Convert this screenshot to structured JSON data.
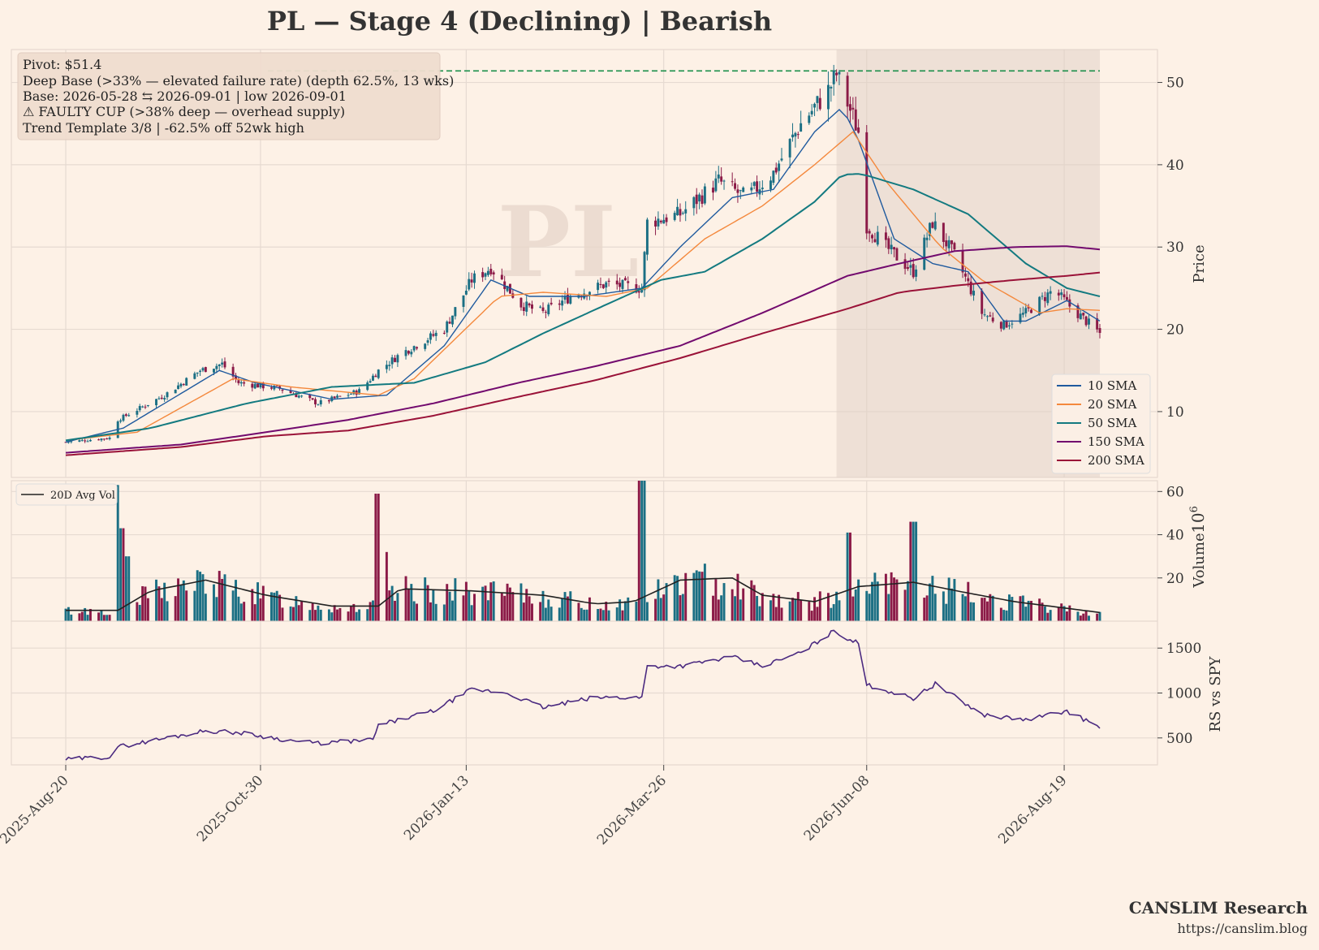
{
  "title": "PL  —  Stage 4 (Declining)  |  Bearish",
  "watermark": "PL",
  "annotation_lines": [
    "Pivot: $51.4",
    "Deep Base (>33% — elevated failure rate)  (depth 62.5%, 13 wks)",
    "Base: 2026-05-28 ⇆ 2026-09-01  |  low 2026-09-01",
    "⚠ FAULTY CUP (>38% deep — overhead supply)",
    "Trend Template 3/8  |  -62.5% off 52wk high"
  ],
  "brand": {
    "name": "CANSLIM Research",
    "url": "https://canslim.blog"
  },
  "colors": {
    "background": "#fdf1e6",
    "up_candle": "#1b6f84",
    "down_candle": "#8b1a47",
    "sma10": "#1f5a9e",
    "sma20": "#f4883c",
    "sma50": "#137a80",
    "sma150": "#720a6e",
    "sma200": "#9a1238",
    "avg_vol": "#222222",
    "rs_line": "#4b2a80",
    "pivot_line": "#1b8f4a",
    "base_shade": "#e0cfc5"
  },
  "chart_data": [
    {
      "type": "candlestick",
      "panel": "price",
      "ylabel": "Price",
      "ylim": [
        2,
        54
      ],
      "yticks": [
        10,
        20,
        30,
        40,
        50
      ],
      "x_range": [
        "2025-08-20",
        "2026-09-01"
      ],
      "xtick_labels": [
        "2025-Aug-20",
        "2025-Oct-30",
        "2026-Jan-13",
        "2026-Mar-26",
        "2026-Jun-08",
        "2026-Aug-19"
      ],
      "pivot": 51.4,
      "base_zone": [
        "2026-05-28",
        "2026-09-01"
      ],
      "price_path": [
        [
          "2025-08-20",
          6.3
        ],
        [
          "2025-09-05",
          6.8
        ],
        [
          "2025-09-08",
          9.0
        ],
        [
          "2025-09-25",
          12.0
        ],
        [
          "2025-10-08",
          15.0
        ],
        [
          "2025-10-16",
          15.8
        ],
        [
          "2025-10-22",
          13.5
        ],
        [
          "2025-11-06",
          12.8
        ],
        [
          "2025-11-20",
          11.0
        ],
        [
          "2025-12-05",
          12.5
        ],
        [
          "2025-12-12",
          15.0
        ],
        [
          "2025-12-20",
          17.0
        ],
        [
          "2026-01-05",
          20.0
        ],
        [
          "2026-01-15",
          26.0
        ],
        [
          "2026-01-22",
          27.5
        ],
        [
          "2026-02-02",
          23.0
        ],
        [
          "2026-02-10",
          22.0
        ],
        [
          "2026-02-20",
          24.0
        ],
        [
          "2026-03-05",
          25.5
        ],
        [
          "2026-03-18",
          25.0
        ],
        [
          "2026-03-20",
          33.0
        ],
        [
          "2026-04-01",
          34.0
        ],
        [
          "2026-04-15",
          38.0
        ],
        [
          "2026-04-25",
          36.0
        ],
        [
          "2026-05-05",
          39.0
        ],
        [
          "2026-05-15",
          45.0
        ],
        [
          "2026-05-25",
          49.0
        ],
        [
          "2026-05-28",
          51.0
        ],
        [
          "2026-06-05",
          44.0
        ],
        [
          "2026-06-07",
          33.0
        ],
        [
          "2026-06-15",
          30.0
        ],
        [
          "2026-06-25",
          27.0
        ],
        [
          "2026-07-02",
          33.0
        ],
        [
          "2026-07-10",
          29.0
        ],
        [
          "2026-07-20",
          22.0
        ],
        [
          "2026-07-28",
          20.5
        ],
        [
          "2026-08-05",
          22.0
        ],
        [
          "2026-08-15",
          24.8
        ],
        [
          "2026-08-22",
          22.5
        ],
        [
          "2026-09-01",
          19.5
        ]
      ],
      "series": [
        {
          "name": "10 SMA",
          "values": [
            [
              "2025-08-20",
              6.3
            ],
            [
              "2025-09-10",
              8.0
            ],
            [
              "2025-10-15",
              15.0
            ],
            [
              "2025-10-28",
              13.5
            ],
            [
              "2025-11-25",
              11.5
            ],
            [
              "2025-12-15",
              12.0
            ],
            [
              "2026-01-05",
              18.0
            ],
            [
              "2026-01-22",
              26.0
            ],
            [
              "2026-02-05",
              24.0
            ],
            [
              "2026-02-25",
              24.0
            ],
            [
              "2026-03-18",
              25.0
            ],
            [
              "2026-04-01",
              30.0
            ],
            [
              "2026-04-20",
              36.0
            ],
            [
              "2026-05-05",
              37.0
            ],
            [
              "2026-05-20",
              44.0
            ],
            [
              "2026-05-30",
              47.0
            ],
            [
              "2026-06-05",
              43.0
            ],
            [
              "2026-06-18",
              31.0
            ],
            [
              "2026-07-02",
              28.0
            ],
            [
              "2026-07-15",
              27.0
            ],
            [
              "2026-07-28",
              21.0
            ],
            [
              "2026-08-05",
              21.0
            ],
            [
              "2026-08-20",
              23.5
            ],
            [
              "2026-09-01",
              21.0
            ]
          ]
        },
        {
          "name": "20 SMA",
          "values": [
            [
              "2025-08-20",
              6.5
            ],
            [
              "2025-09-15",
              7.5
            ],
            [
              "2025-10-20",
              14.0
            ],
            [
              "2025-11-10",
              13.0
            ],
            [
              "2025-12-12",
              12.0
            ],
            [
              "2025-12-25",
              14.0
            ],
            [
              "2026-01-25",
              24.0
            ],
            [
              "2026-02-10",
              24.5
            ],
            [
              "2026-03-05",
              24.0
            ],
            [
              "2026-03-20",
              25.0
            ],
            [
              "2026-04-10",
              31.0
            ],
            [
              "2026-05-01",
              35.0
            ],
            [
              "2026-05-20",
              40.0
            ],
            [
              "2026-06-03",
              44.0
            ],
            [
              "2026-06-15",
              38.0
            ],
            [
              "2026-07-05",
              30.0
            ],
            [
              "2026-07-20",
              26.0
            ],
            [
              "2026-08-10",
              22.0
            ],
            [
              "2026-08-20",
              22.5
            ],
            [
              "2026-09-01",
              22.3
            ]
          ]
        },
        {
          "name": "50 SMA",
          "values": [
            [
              "2025-08-20",
              6.5
            ],
            [
              "2025-09-20",
              8.0
            ],
            [
              "2025-10-25",
              11.0
            ],
            [
              "2025-11-25",
              13.0
            ],
            [
              "2025-12-25",
              13.5
            ],
            [
              "2026-01-20",
              16.0
            ],
            [
              "2026-02-10",
              19.5
            ],
            [
              "2026-03-05",
              23.0
            ],
            [
              "2026-03-25",
              26.0
            ],
            [
              "2026-04-10",
              27.0
            ],
            [
              "2026-05-01",
              31.0
            ],
            [
              "2026-05-20",
              35.5
            ],
            [
              "2026-05-30",
              38.8
            ],
            [
              "2026-06-06",
              38.9
            ],
            [
              "2026-06-25",
              37.0
            ],
            [
              "2026-07-15",
              34.0
            ],
            [
              "2026-08-05",
              28.0
            ],
            [
              "2026-08-20",
              25.0
            ],
            [
              "2026-09-01",
              24.0
            ]
          ]
        },
        {
          "name": "150 SMA",
          "values": [
            [
              "2025-08-20",
              5.0
            ],
            [
              "2025-10-01",
              6.0
            ],
            [
              "2025-11-01",
              7.5
            ],
            [
              "2025-12-01",
              9.0
            ],
            [
              "2026-01-01",
              11.0
            ],
            [
              "2026-02-01",
              13.5
            ],
            [
              "2026-03-01",
              15.5
            ],
            [
              "2026-04-01",
              18.0
            ],
            [
              "2026-05-01",
              22.0
            ],
            [
              "2026-06-01",
              26.5
            ],
            [
              "2026-06-20",
              28.0
            ],
            [
              "2026-07-10",
              29.5
            ],
            [
              "2026-08-01",
              30.0
            ],
            [
              "2026-08-20",
              30.1
            ],
            [
              "2026-09-01",
              29.7
            ]
          ]
        },
        {
          "name": "200 SMA",
          "values": [
            [
              "2025-08-20",
              4.7
            ],
            [
              "2025-10-01",
              5.7
            ],
            [
              "2025-11-01",
              7.0
            ],
            [
              "2025-12-01",
              7.7
            ],
            [
              "2026-01-01",
              9.5
            ],
            [
              "2026-02-01",
              11.8
            ],
            [
              "2026-03-01",
              13.8
            ],
            [
              "2026-04-01",
              16.5
            ],
            [
              "2026-05-01",
              19.5
            ],
            [
              "2026-06-01",
              22.5
            ],
            [
              "2026-06-20",
              24.5
            ],
            [
              "2026-07-10",
              25.3
            ],
            [
              "2026-08-01",
              26.0
            ],
            [
              "2026-08-20",
              26.5
            ],
            [
              "2026-09-01",
              26.9
            ]
          ]
        }
      ],
      "legend_position": "lower-right"
    },
    {
      "type": "bar",
      "panel": "volume",
      "ylabel": "Volume",
      "scale_label": "10^6",
      "ylim": [
        0,
        65
      ],
      "yticks": [
        20,
        40,
        60
      ],
      "legend": "20D Avg Vol",
      "legend_position": "upper-left",
      "spikes": [
        [
          "2025-09-08",
          63
        ],
        [
          "2025-09-10",
          43
        ],
        [
          "2025-09-12",
          30
        ],
        [
          "2025-12-12",
          59
        ],
        [
          "2025-12-14",
          32
        ],
        [
          "2026-03-18",
          65
        ],
        [
          "2026-06-01",
          41
        ],
        [
          "2026-06-25",
          46
        ]
      ],
      "avg_vol_path": [
        [
          "2025-08-20",
          5
        ],
        [
          "2025-09-08",
          5
        ],
        [
          "2025-09-20",
          14
        ],
        [
          "2025-10-10",
          19
        ],
        [
          "2025-11-01",
          12
        ],
        [
          "2025-11-25",
          7
        ],
        [
          "2025-12-12",
          7
        ],
        [
          "2025-12-20",
          15
        ],
        [
          "2026-01-15",
          14
        ],
        [
          "2026-02-10",
          12
        ],
        [
          "2026-03-01",
          8
        ],
        [
          "2026-03-15",
          9
        ],
        [
          "2026-04-01",
          19
        ],
        [
          "2026-04-20",
          20
        ],
        [
          "2026-05-01",
          12
        ],
        [
          "2026-05-20",
          9
        ],
        [
          "2026-06-05",
          16
        ],
        [
          "2026-06-25",
          18
        ],
        [
          "2026-07-15",
          13
        ],
        [
          "2026-08-01",
          9
        ],
        [
          "2026-09-01",
          4
        ]
      ]
    },
    {
      "type": "line",
      "panel": "relative-strength",
      "ylabel": "RS vs SPY",
      "ylim": [
        200,
        1800
      ],
      "yticks": [
        500,
        1000,
        1500
      ],
      "values": [
        [
          "2025-08-20",
          260
        ],
        [
          "2025-09-05",
          290
        ],
        [
          "2025-09-08",
          400
        ],
        [
          "2025-10-10",
          580
        ],
        [
          "2025-10-22",
          560
        ],
        [
          "2025-11-10",
          470
        ],
        [
          "2025-11-20",
          440
        ],
        [
          "2025-12-10",
          480
        ],
        [
          "2025-12-12",
          640
        ],
        [
          "2026-01-01",
          800
        ],
        [
          "2026-01-15",
          1040
        ],
        [
          "2026-01-28",
          1000
        ],
        [
          "2026-02-10",
          840
        ],
        [
          "2026-03-01",
          950
        ],
        [
          "2026-03-18",
          950
        ],
        [
          "2026-03-20",
          1300
        ],
        [
          "2026-04-01",
          1300
        ],
        [
          "2026-04-20",
          1400
        ],
        [
          "2026-05-01",
          1300
        ],
        [
          "2026-05-15",
          1450
        ],
        [
          "2026-05-27",
          1690
        ],
        [
          "2026-06-05",
          1550
        ],
        [
          "2026-06-07",
          1100
        ],
        [
          "2026-06-25",
          940
        ],
        [
          "2026-07-03",
          1100
        ],
        [
          "2026-07-20",
          760
        ],
        [
          "2026-08-05",
          700
        ],
        [
          "2026-08-20",
          800
        ],
        [
          "2026-09-01",
          620
        ]
      ]
    }
  ]
}
